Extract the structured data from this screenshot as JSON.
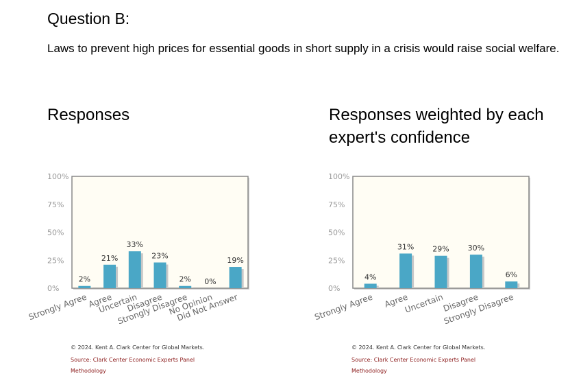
{
  "question": {
    "title": "Question B:",
    "text": "Laws to prevent high prices for essential goods in short supply in a crisis would raise social welfare."
  },
  "colors": {
    "bar": "#4aa7c6",
    "bar_shadow": "#c8c8c8",
    "plot_bg": "#fffdf4",
    "frame": "#888888"
  },
  "panels": [
    {
      "title": "Responses",
      "footer": {
        "copyright": "© 2024. Kent A. Clark Center for Global Markets.",
        "source_prefix": "Source: ",
        "source_link": "Clark Center Economic Experts Panel",
        "methodology": "Methodology"
      }
    },
    {
      "title": "Responses weighted by each expert's confidence",
      "footer": {
        "copyright": "© 2024. Kent A. Clark Center for Global Markets.",
        "source_prefix": "Source: ",
        "source_link": "Clark Center Economic Experts Panel",
        "methodology": "Methodology"
      }
    }
  ],
  "chart_data": [
    {
      "type": "bar",
      "title": "Responses",
      "categories": [
        "Strongly Agree",
        "Agree",
        "Uncertain",
        "Disagree",
        "Strongly Disagree",
        "No Opinion",
        "Did Not Answer"
      ],
      "values": [
        2,
        21,
        33,
        23,
        2,
        0,
        19
      ],
      "value_labels": [
        "2%",
        "21%",
        "33%",
        "23%",
        "2%",
        "0%",
        "19%"
      ],
      "yticks": [
        "100%",
        "75%",
        "50%",
        "25%",
        "0%"
      ],
      "ylim": [
        0,
        100
      ],
      "grid": false
    },
    {
      "type": "bar",
      "title": "Responses weighted by each expert's confidence",
      "categories": [
        "Strongly Agree",
        "Agree",
        "Uncertain",
        "Disagree",
        "Strongly Disagree"
      ],
      "values": [
        4,
        31,
        29,
        30,
        6
      ],
      "value_labels": [
        "4%",
        "31%",
        "29%",
        "30%",
        "6%"
      ],
      "yticks": [
        "100%",
        "75%",
        "50%",
        "25%",
        "0%"
      ],
      "ylim": [
        0,
        100
      ],
      "grid": false
    }
  ]
}
